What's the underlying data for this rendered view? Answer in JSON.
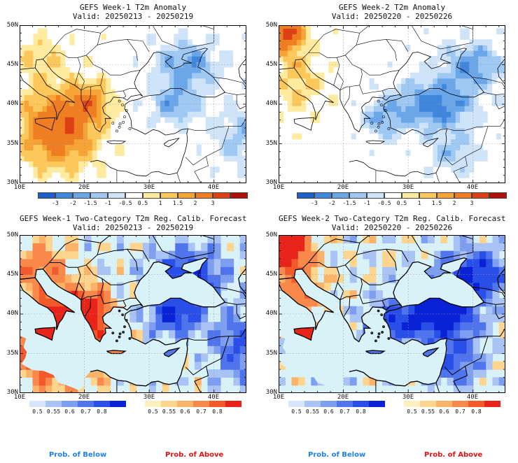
{
  "panels": [
    {
      "title": "GEFS Week-1 T2m Anomaly",
      "valid": "Valid: 20250213 - 20250219",
      "style": "anomaly",
      "week": 1
    },
    {
      "title": "GEFS Week-2 T2m Anomaly",
      "valid": "Valid: 20250220 - 20250226",
      "style": "anomaly",
      "week": 2
    },
    {
      "title": "GEFS Week-1 Two-Category T2m Reg. Calib. Forecast",
      "valid": "Valid: 20250213 - 20250219",
      "style": "prob",
      "week": 1
    },
    {
      "title": "GEFS Week-2 Two-Category T2m Reg. Calib. Forecast",
      "valid": "Valid: 20250220 - 20250226",
      "style": "prob",
      "week": 2
    }
  ],
  "lat_labels": [
    "50N",
    "45N",
    "40N",
    "35N",
    "30N"
  ],
  "lon_labels": [
    "10E",
    "20E",
    "30E",
    "40E"
  ],
  "anomaly_colorbar": {
    "labels": [
      "-3",
      "-2",
      "-1.5",
      "-1",
      "-0.5",
      "0.5",
      "1",
      "1.5",
      "2",
      "3"
    ],
    "colors": [
      "#1f5fc8",
      "#3f86dc",
      "#6aa6e8",
      "#9fc8f2",
      "#cfe4f8",
      "#ffffff",
      "#ffeba0",
      "#fcc85c",
      "#f7a436",
      "#ef7d22",
      "#de4015",
      "#b01008"
    ]
  },
  "below_colorbar": {
    "labels": [
      "0.5",
      "0.55",
      "0.6",
      "0.7",
      "0.8"
    ],
    "colors": [
      "#d7e6fb",
      "#a9c3f4",
      "#7e9ef0",
      "#5074ec",
      "#2a4ee8",
      "#0a22d6"
    ]
  },
  "above_colorbar": {
    "labels": [
      "0.5",
      "0.55",
      "0.6",
      "0.7",
      "0.8"
    ],
    "colors": [
      "#fff0c0",
      "#fdd58e",
      "#fbb36a",
      "#f8894a",
      "#f25a2c",
      "#e8241a"
    ]
  },
  "prob_of_below": "Prob. of Below",
  "prob_of_above": "Prob. of Above",
  "colors": {
    "below_text": "#1e82e6",
    "above_text": "#e01414",
    "sea": "#d8f2f8",
    "land_coast": "#000000"
  }
}
